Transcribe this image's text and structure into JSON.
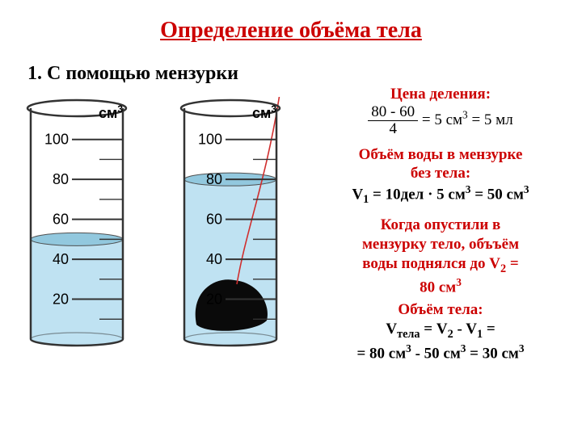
{
  "title": {
    "text": "Определение  объёма  тела",
    "color": "#cc0000"
  },
  "subtitle": "1.  С  помощью  мензурки",
  "cylinder": {
    "unit_html": "см<sup>3</sup>",
    "ticks_major": [
      100,
      80,
      60,
      40,
      20
    ],
    "tick_font_family": "Arial, sans-serif",
    "tick_font_size": 18,
    "outline_color": "#333333",
    "water_color": "#bfe2f2",
    "water_surface_color": "#7fbfd9",
    "object_color": "#0a0a0a",
    "thread_color": "#d02e2e",
    "left_water_level": 50,
    "right_water_level": 80,
    "y_top_value": 110,
    "y_bottom_value": 0
  },
  "texts": {
    "scale_header": {
      "text": "Цена деления:",
      "color": "#cc0000"
    },
    "scale_formula": {
      "num": "80 - 60",
      "den": "4",
      "rhs": " =  5 см",
      "sup": "3",
      "tail": " = 5 мл"
    },
    "vol_no_body_header": {
      "line1": "Объём  воды  в  мензурке",
      "line2": "без  тела:",
      "color": "#cc0000"
    },
    "vol_no_body_formula": {
      "pre": "V",
      "sub1": "1",
      "mid": " = 10дел · 5 см",
      "sup1": "3",
      "mid2": " = 50 см",
      "sup2": "3"
    },
    "drop_text": {
      "line1": "Когда  опустили  в",
      "line2": "мензурку тело,  объъём",
      "line3_pre": "воды  поднялся  до  V",
      "line3_sub": "2",
      "line3_post": " =",
      "line4_pre": "80 см",
      "line4_sup": "3",
      "color": "#cc0000"
    },
    "vol_body_header": {
      "text": "Объём  тела:",
      "color": "#cc0000"
    },
    "vol_body_formula": {
      "l1_a": "V",
      "l1_sub1": "тела",
      "l1_b": " = V",
      "l1_sub2": "2",
      "l1_c": "  -  V",
      "l1_sub3": "1",
      "l1_d": "  =",
      "l2_a": "= 80 см",
      "l2_sup1": "3",
      "l2_b": " - 50 см",
      "l2_sup2": "3",
      "l2_c": " = 30 см",
      "l2_sup3": "3"
    }
  }
}
